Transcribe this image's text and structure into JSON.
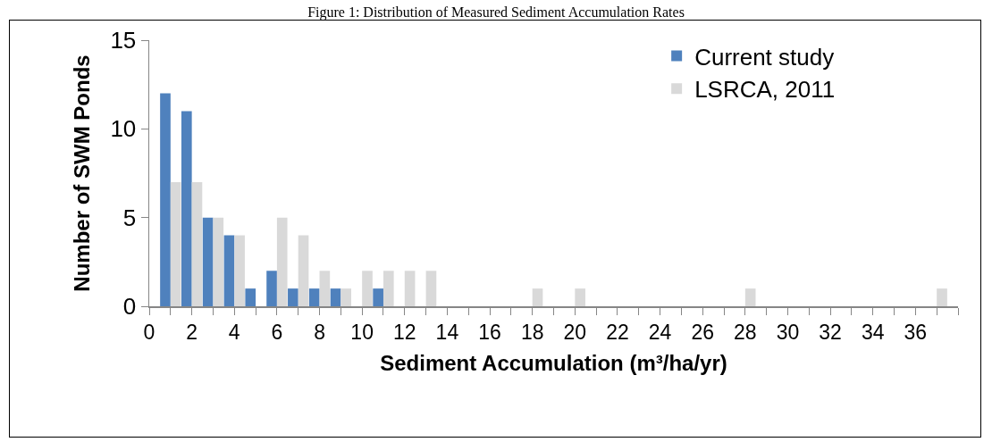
{
  "chart_data": {
    "type": "bar",
    "title": "Figure 1: Distribution of Measured Sediment Accumulation Rates",
    "xlabel": "Sediment Accumulation (m³/ha/yr)",
    "ylabel": "Number of SWM Ponds",
    "x": [
      1,
      2,
      3,
      4,
      5,
      6,
      7,
      8,
      9,
      10,
      11,
      12,
      13,
      14,
      15,
      16,
      17,
      18,
      19,
      20,
      21,
      22,
      23,
      24,
      25,
      26,
      27,
      28,
      29,
      30,
      31,
      32,
      33,
      34,
      35,
      36,
      37
    ],
    "series": [
      {
        "name": "Current study",
        "color": "#4f81bd",
        "values": [
          12,
          11,
          5,
          4,
          1,
          2,
          1,
          1,
          1,
          0,
          1,
          0,
          0,
          0,
          0,
          0,
          0,
          0,
          0,
          0,
          0,
          0,
          0,
          0,
          0,
          0,
          0,
          0,
          0,
          0,
          0,
          0,
          0,
          0,
          0,
          0,
          0
        ]
      },
      {
        "name": "LSRCA, 2011",
        "color": "#d9d9d9",
        "values": [
          7,
          7,
          5,
          4,
          0,
          5,
          4,
          2,
          1,
          2,
          2,
          2,
          2,
          0,
          0,
          0,
          0,
          1,
          0,
          1,
          0,
          0,
          0,
          0,
          0,
          0,
          0,
          1,
          0,
          0,
          0,
          0,
          0,
          0,
          0,
          0,
          1
        ]
      }
    ],
    "xlim": [
      0,
      38
    ],
    "xticks": [
      0,
      {
        "value": 1,
        "label": null
      },
      2,
      {
        "value": 3,
        "label": null
      },
      4,
      {
        "value": 5,
        "label": null
      },
      6,
      {
        "value": 7,
        "label": null
      },
      8,
      {
        "value": 9,
        "label": null
      },
      10,
      {
        "value": 11,
        "label": null
      },
      12,
      {
        "value": 13,
        "label": null
      },
      14,
      {
        "value": 15,
        "label": null
      },
      16,
      {
        "value": 17,
        "label": null
      },
      18,
      {
        "value": 19,
        "label": null
      },
      20,
      {
        "value": 21,
        "label": null
      },
      22,
      {
        "value": 23,
        "label": null
      },
      24,
      {
        "value": 25,
        "label": null
      },
      26,
      {
        "value": 27,
        "label": null
      },
      28,
      {
        "value": 29,
        "label": null
      },
      30,
      {
        "value": 31,
        "label": null
      },
      32,
      {
        "value": 33,
        "label": null
      },
      34,
      {
        "value": 35,
        "label": null
      },
      36,
      {
        "value": 37,
        "label": null
      },
      {
        "value": 38,
        "label": null
      }
    ],
    "ylim": [
      0,
      15
    ],
    "yticks": [
      0,
      5,
      10,
      15
    ],
    "grid": false,
    "legend": "top right"
  }
}
